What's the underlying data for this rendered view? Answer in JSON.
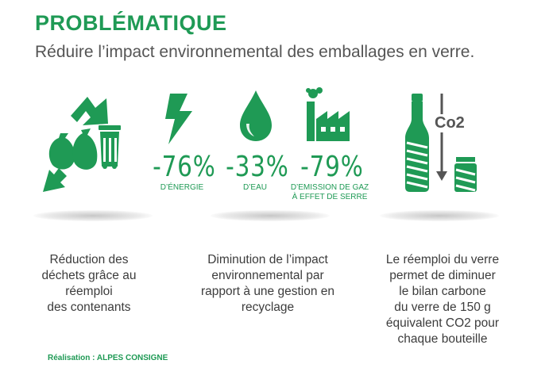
{
  "header": {
    "title": "PROBLÉMATIQUE",
    "subtitle": "Réduire l’impact environnemental des emballages en verre."
  },
  "stats": [
    {
      "value": "-76%",
      "caption": "D’ÉNERGIE",
      "icon": "lightning-icon"
    },
    {
      "value": "-33%",
      "caption": "D’EAU",
      "icon": "water-drop-icon"
    },
    {
      "value": "-79%",
      "caption_lines": [
        "D’EMISSION DE GAZ",
        "À EFFET DE SERRE"
      ],
      "icon": "factory-icon"
    }
  ],
  "co2_label": "Co2",
  "descriptions": {
    "waste": "Réduction des\ndéchets grâce au\nréemploi\ndes contenants",
    "impact": "Diminution de l’impact\nenvironnemental par\nrapport à une gestion en\nrecyclage",
    "carbon": "Le réemploi du verre\npermet de diminuer\nle bilan carbone\ndu verre de 150 g\néquivalent CO2 pour\nchaque bouteille"
  },
  "credit": "Réalisation : ALPES CONSIGNE",
  "colors": {
    "accent": "#1f9a55",
    "text": "#3c3c3c",
    "subtitle": "#555555"
  },
  "icons": [
    "recycle-waste-icon",
    "lightning-icon",
    "water-drop-icon",
    "factory-icon",
    "bottle-co2-icon"
  ]
}
